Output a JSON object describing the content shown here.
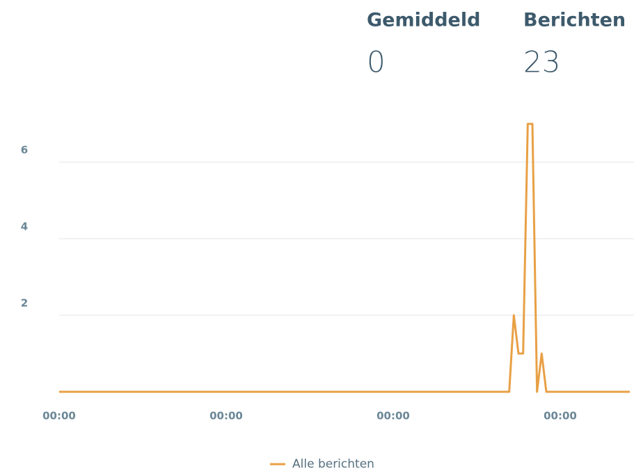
{
  "stats": [
    {
      "label": "Gemiddeld",
      "value": 0
    },
    {
      "label": "Berichten",
      "value": 23
    }
  ],
  "chart_data": {
    "type": "line",
    "categories": [
      "00:00",
      null,
      null,
      null,
      null,
      null,
      null,
      null,
      null,
      null,
      null,
      null,
      null,
      null,
      null,
      null,
      null,
      null,
      null,
      null,
      null,
      null,
      null,
      null,
      null,
      null,
      null,
      null,
      null,
      null,
      null,
      null,
      null,
      null,
      null,
      null,
      "00:00",
      null,
      null,
      null,
      null,
      null,
      null,
      null,
      null,
      null,
      null,
      null,
      null,
      null,
      null,
      null,
      null,
      null,
      null,
      null,
      null,
      null,
      null,
      null,
      null,
      null,
      null,
      null,
      null,
      null,
      null,
      null,
      null,
      null,
      null,
      null,
      "00:00",
      null,
      null,
      null,
      null,
      null,
      null,
      null,
      null,
      null,
      null,
      null,
      null,
      null,
      null,
      null,
      null,
      null,
      null,
      null,
      null,
      null,
      null,
      null,
      null,
      null,
      null,
      null,
      null,
      null,
      null,
      null,
      null,
      null,
      null,
      null,
      "00:00",
      null,
      null,
      null,
      null,
      null,
      null,
      null,
      null,
      null,
      null,
      null,
      null,
      null,
      null,
      null
    ],
    "series": [
      {
        "name": "Alle berichten",
        "color": "#e8a045",
        "values": [
          0,
          0,
          0,
          0,
          0,
          0,
          0,
          0,
          0,
          0,
          0,
          0,
          0,
          0,
          0,
          0,
          0,
          0,
          0,
          0,
          0,
          0,
          0,
          0,
          0,
          0,
          0,
          0,
          0,
          0,
          0,
          0,
          0,
          0,
          0,
          0,
          0,
          0,
          0,
          0,
          0,
          0,
          0,
          0,
          0,
          0,
          0,
          0,
          0,
          0,
          0,
          0,
          0,
          0,
          0,
          0,
          0,
          0,
          0,
          0,
          0,
          0,
          0,
          0,
          0,
          0,
          0,
          0,
          0,
          0,
          0,
          0,
          0,
          0,
          0,
          0,
          0,
          0,
          0,
          0,
          0,
          0,
          0,
          0,
          0,
          0,
          0,
          0,
          0,
          0,
          0,
          0,
          0,
          0,
          0,
          0,
          0,
          0,
          2,
          1,
          1,
          7,
          7,
          0,
          1,
          0,
          0,
          0,
          0,
          0,
          0,
          0,
          0,
          0,
          0,
          0,
          0,
          0,
          0,
          0,
          0,
          0,
          0,
          0
        ]
      }
    ],
    "ylim": [
      0,
      7.5
    ],
    "yticks": [
      2,
      4,
      6
    ],
    "grid": true
  }
}
